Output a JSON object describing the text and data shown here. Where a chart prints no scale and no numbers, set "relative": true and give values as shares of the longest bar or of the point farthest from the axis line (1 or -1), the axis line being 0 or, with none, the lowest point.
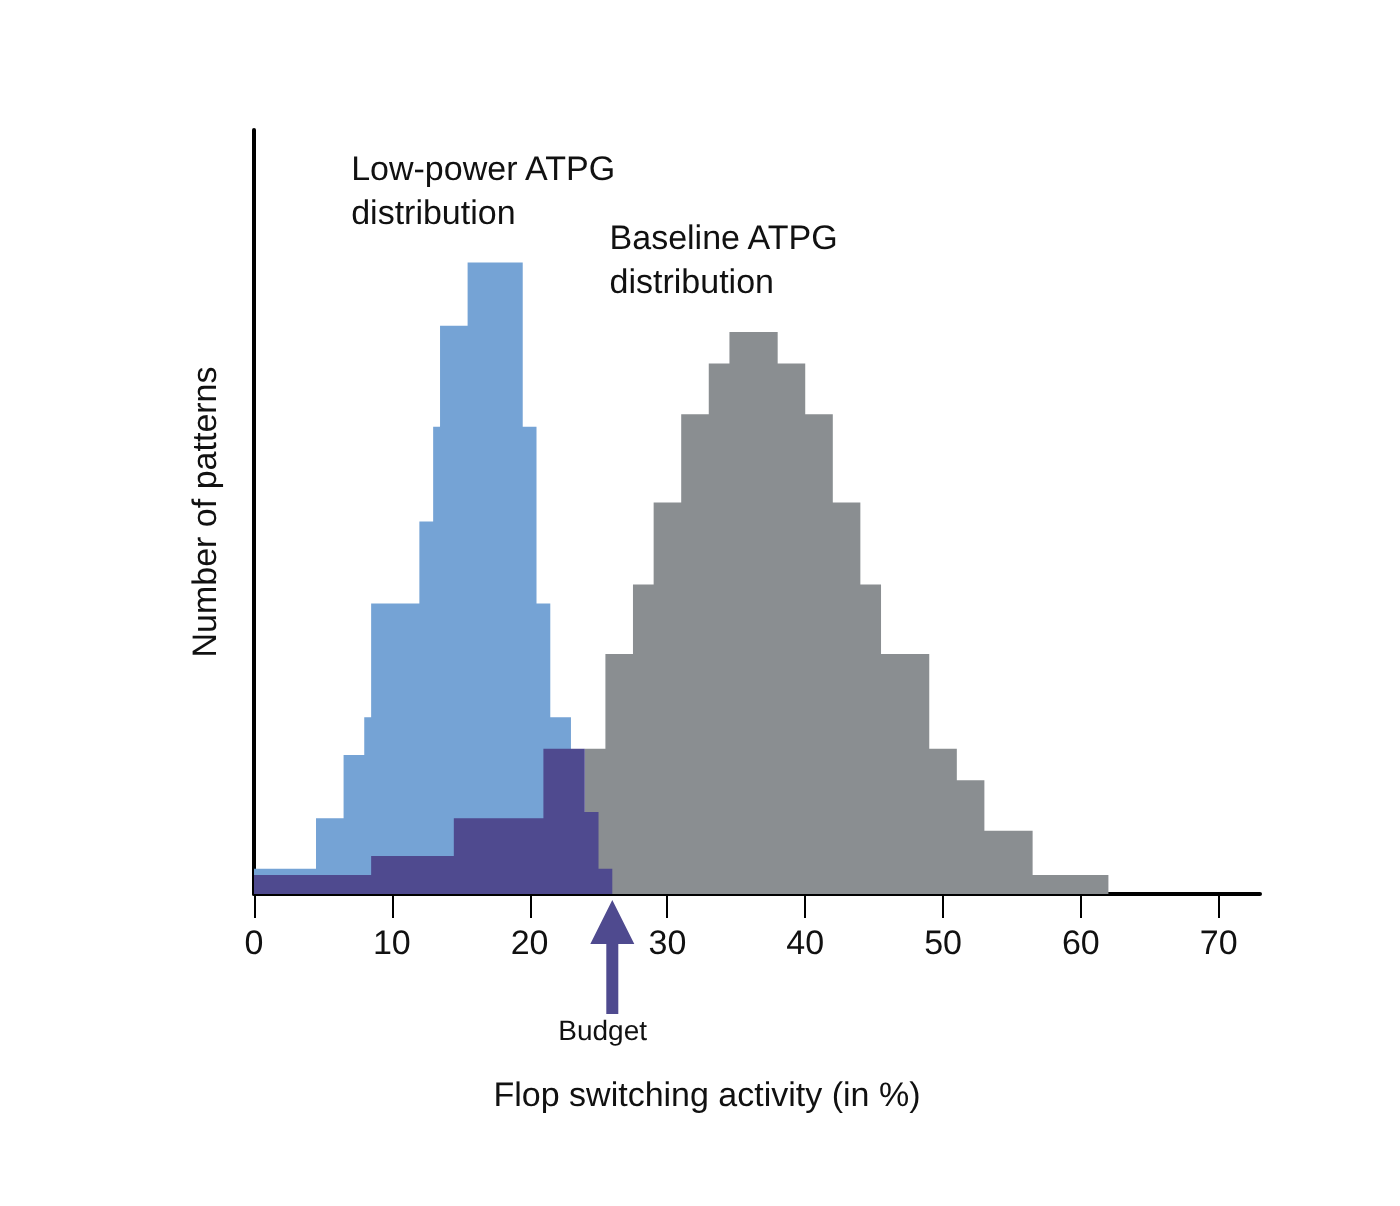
{
  "chart_data": {
    "type": "area",
    "xlabel": "Flop switching activity (in %)",
    "ylabel": "Number of patterns",
    "relative": true,
    "xlim": [
      0,
      73
    ],
    "xticks": [
      0,
      10,
      20,
      30,
      40,
      50,
      60,
      70
    ],
    "grid": false,
    "legend": false,
    "series": [
      {
        "name": "Baseline ATPG distribution",
        "color": "#8a8e91",
        "x": [
          24,
          24,
          25.5,
          25.5,
          27.5,
          27.5,
          29,
          29,
          31,
          31,
          33,
          33,
          34.5,
          34.5,
          38,
          38,
          40,
          40,
          42,
          42,
          44,
          44,
          45.5,
          45.5,
          49,
          49,
          51,
          51,
          53,
          53,
          56.5,
          56.5,
          62,
          62
        ],
        "values": [
          0,
          0.23,
          0.23,
          0.38,
          0.38,
          0.49,
          0.49,
          0.62,
          0.62,
          0.76,
          0.76,
          0.84,
          0.84,
          0.89,
          0.89,
          0.84,
          0.84,
          0.76,
          0.76,
          0.62,
          0.62,
          0.49,
          0.49,
          0.38,
          0.38,
          0.23,
          0.23,
          0.18,
          0.18,
          0.1,
          0.1,
          0.03,
          0.03,
          0
        ]
      },
      {
        "name": "Low-power ATPG distribution",
        "color": "#75a3d5",
        "x": [
          0,
          0,
          4.5,
          4.5,
          6.5,
          6.5,
          8,
          8,
          8.5,
          8.5,
          12,
          12,
          13,
          13,
          13.5,
          13.5,
          15.5,
          15.5,
          19.5,
          19.5,
          20.5,
          20.5,
          21.5,
          21.5,
          23,
          23
        ],
        "values": [
          0,
          0.04,
          0.04,
          0.12,
          0.12,
          0.22,
          0.22,
          0.28,
          0.28,
          0.46,
          0.46,
          0.59,
          0.59,
          0.74,
          0.74,
          0.9,
          0.9,
          1,
          1,
          0.74,
          0.74,
          0.46,
          0.46,
          0.28,
          0.28,
          0
        ]
      },
      {
        "color": "#4f4a8f",
        "x": [
          0,
          0,
          8.5,
          8.5,
          14.5,
          14.5,
          21,
          21,
          24,
          24,
          25,
          25,
          26,
          26
        ],
        "values": [
          0,
          0.03,
          0.03,
          0.06,
          0.06,
          0.12,
          0.12,
          0.23,
          0.23,
          0.13,
          0.13,
          0.04,
          0.04,
          0
        ]
      }
    ],
    "annotations": [
      "Budget"
    ]
  }
}
